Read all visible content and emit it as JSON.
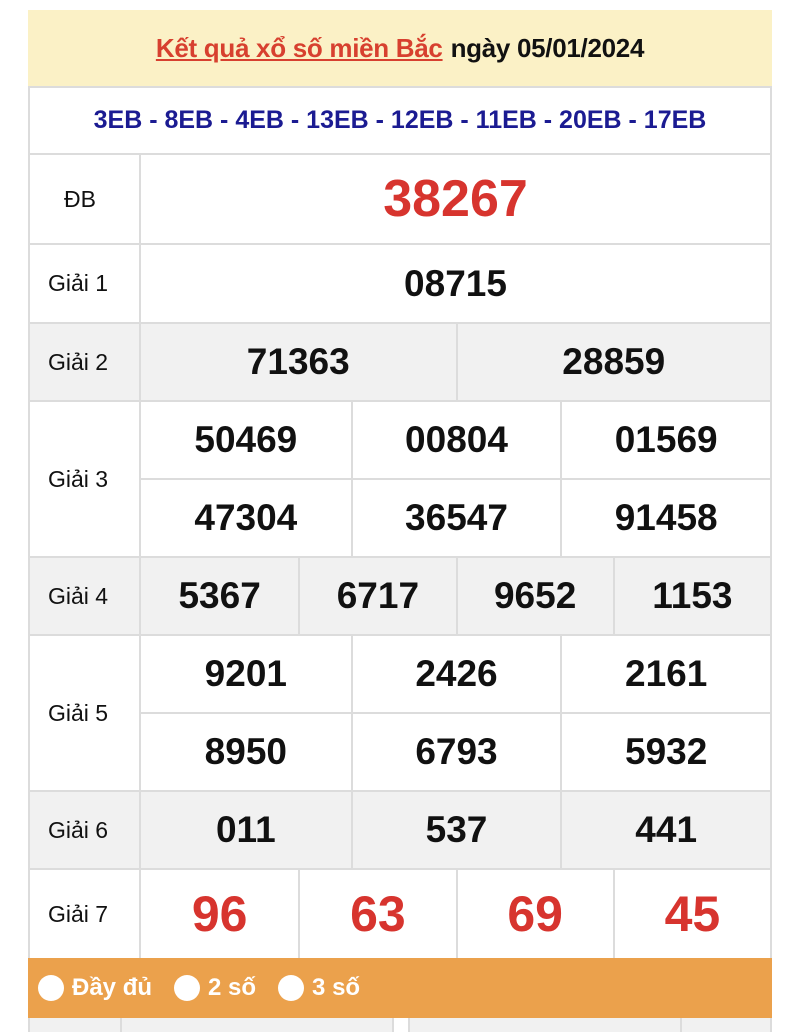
{
  "header": {
    "title_link": "Kết quả xổ số miền Bắc",
    "date_text": "ngày 05/01/2024"
  },
  "codes": "3EB - 8EB - 4EB - 13EB - 12EB - 11EB - 20EB - 17EB",
  "prizes": [
    {
      "label": "ĐB",
      "cols": 1,
      "values": [
        "38267"
      ],
      "color": "#d7342e"
    },
    {
      "label": "Giải 1",
      "cols": 1,
      "values": [
        "08715"
      ]
    },
    {
      "label": "Giải 2",
      "cols": 2,
      "values": [
        "71363",
        "28859"
      ]
    },
    {
      "label": "Giải 3",
      "cols": 3,
      "values": [
        "50469",
        "00804",
        "01569",
        "47304",
        "36547",
        "91458"
      ]
    },
    {
      "label": "Giải 4",
      "cols": 4,
      "values": [
        "5367",
        "6717",
        "9652",
        "1153"
      ]
    },
    {
      "label": "Giải 5",
      "cols": 3,
      "values": [
        "9201",
        "2426",
        "2161",
        "8950",
        "6793",
        "5932"
      ]
    },
    {
      "label": "Giải 6",
      "cols": 3,
      "values": [
        "011",
        "537",
        "441"
      ]
    },
    {
      "label": "Giải 7",
      "cols": 4,
      "values": [
        "96",
        "63",
        "69",
        "45"
      ],
      "color": "#d7342e"
    }
  ],
  "display_options": [
    {
      "label": "Đầy đủ"
    },
    {
      "label": "2 số"
    },
    {
      "label": "3 số"
    }
  ],
  "colors": {
    "header_bg": "#fbf1c6",
    "title_red": "#d7402f",
    "codes_blue": "#1b1b92",
    "bar_orange": "#eba14c"
  }
}
